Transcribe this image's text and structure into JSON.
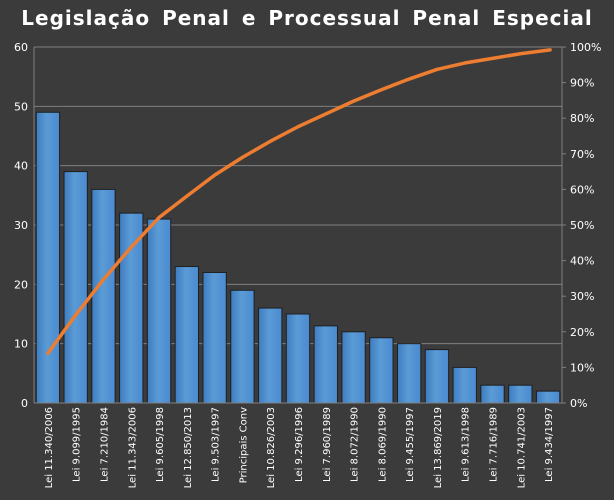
{
  "chart_data": {
    "type": "bar",
    "title": "Legislação  Penal  e Processual  Penal  Especial",
    "categories": [
      "Lei 11.340/2006",
      "Lei 9.099/1995",
      "Lei 7.210/1984",
      "Lei 11.343/2006",
      "Lei 9.605/1998",
      "Lei 12.850/2013",
      "Lei 9.503/1997",
      "Principais Conv",
      "Lei 10.826/2003",
      "Lei 9.296/1996",
      "Lei 7.960/1989",
      "Lei 8.072/1990",
      "Lei 8.069/1990",
      "Lei 9.455/1997",
      "Lei 13.869/2019",
      "Lei 9.613/1998",
      "Lei 7.716/1989",
      "Lei 10.741/2003",
      "Lei 9.434/1997"
    ],
    "series": [
      {
        "type": "bar",
        "values": [
          49,
          39,
          36,
          32,
          31,
          23,
          22,
          19,
          16,
          15,
          13,
          12,
          11,
          10,
          9,
          6,
          3,
          3,
          2
        ],
        "color": "#5b9bd5"
      },
      {
        "type": "line",
        "axis": "right",
        "values": [
          14,
          24.7,
          34.7,
          43.8,
          52.1,
          58.1,
          64.0,
          69.0,
          73.5,
          77.6,
          81.2,
          84.8,
          88.0,
          91.0,
          93.7,
          95.5,
          96.8,
          98.1,
          99.2
        ],
        "color": "#ed7d31"
      }
    ],
    "y_left": {
      "range": [
        0,
        60
      ],
      "ticks": [
        "0",
        "10",
        "20",
        "30",
        "40",
        "50",
        "60"
      ]
    },
    "y_right": {
      "range": [
        0,
        100
      ],
      "ticks": [
        "0%",
        "10%",
        "20%",
        "30%",
        "40%",
        "50%",
        "60%",
        "70%",
        "80%",
        "90%",
        "100%"
      ]
    },
    "grid": "horizontal",
    "colors": {
      "background": "#3b3b3b",
      "gridline": "#7f7f7f",
      "bar": "#5b9bd5",
      "line": "#ed7d31",
      "text": "#ffffff"
    }
  }
}
